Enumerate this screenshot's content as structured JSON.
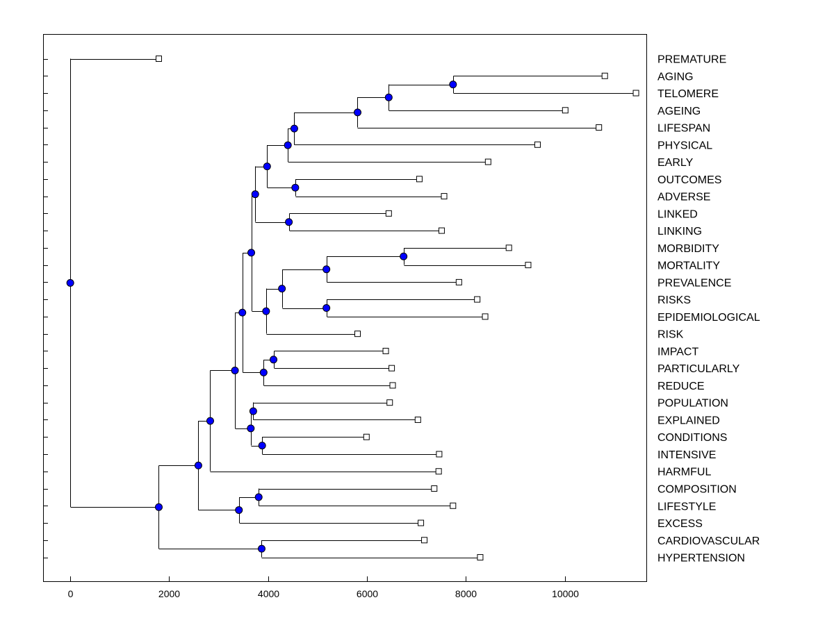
{
  "chart_data": {
    "type": "dendrogram",
    "xlim": [
      -550,
      11650
    ],
    "xticks": [
      0,
      2000,
      4000,
      6000,
      8000,
      10000
    ],
    "xtick_labels": [
      "0",
      "2000",
      "4000",
      "6000",
      "8000",
      "10000"
    ],
    "colors": {
      "node": "#0000ff",
      "leaf": "#ffffff",
      "line": "#000000"
    },
    "leaves": [
      {
        "label": "PREMATURE",
        "x": 1790
      },
      {
        "label": "AGING",
        "x": 10810
      },
      {
        "label": "TELOMERE",
        "x": 11440
      },
      {
        "label": "AGEING",
        "x": 10010
      },
      {
        "label": "LIFESPAN",
        "x": 10690
      },
      {
        "label": "PHYSICAL",
        "x": 9450
      },
      {
        "label": "EARLY",
        "x": 8450
      },
      {
        "label": "OUTCOMES",
        "x": 7060
      },
      {
        "label": "ADVERSE",
        "x": 7560
      },
      {
        "label": "LINKED",
        "x": 6440
      },
      {
        "label": "LINKING",
        "x": 7510
      },
      {
        "label": "MORBIDITY",
        "x": 8870
      },
      {
        "label": "MORTALITY",
        "x": 9260
      },
      {
        "label": "PREVALENCE",
        "x": 7860
      },
      {
        "label": "RISKS",
        "x": 8230
      },
      {
        "label": "EPIDEMIOLOGICAL",
        "x": 8390
      },
      {
        "label": "RISK",
        "x": 5810
      },
      {
        "label": "IMPACT",
        "x": 6380
      },
      {
        "label": "PARTICULARLY",
        "x": 6500
      },
      {
        "label": "REDUCE",
        "x": 6520
      },
      {
        "label": "POPULATION",
        "x": 6460
      },
      {
        "label": "EXPLAINED",
        "x": 7030
      },
      {
        "label": "CONDITIONS",
        "x": 5990
      },
      {
        "label": "INTENSIVE",
        "x": 7460
      },
      {
        "label": "HARMFUL",
        "x": 7450
      },
      {
        "label": "COMPOSITION",
        "x": 7360
      },
      {
        "label": "LIFESTYLE",
        "x": 7740
      },
      {
        "label": "EXCESS",
        "x": 7090
      },
      {
        "label": "CARDIOVASCULAR",
        "x": 7160
      },
      {
        "label": "HYPERTENSION",
        "x": 8290
      }
    ],
    "merges": [
      {
        "id": "n1",
        "x": 7740,
        "children": [
          "L1",
          "L2"
        ]
      },
      {
        "id": "n2",
        "x": 6440,
        "children": [
          "n1",
          "L3"
        ]
      },
      {
        "id": "n3",
        "x": 5810,
        "children": [
          "n2",
          "L4"
        ]
      },
      {
        "id": "n4",
        "x": 4530,
        "children": [
          "n3",
          "L5"
        ]
      },
      {
        "id": "n5",
        "x": 4400,
        "children": [
          "n4",
          "L6"
        ]
      },
      {
        "id": "n6",
        "x": 4550,
        "children": [
          "L7",
          "L8"
        ]
      },
      {
        "id": "n7",
        "x": 3980,
        "children": [
          "n5",
          "n6"
        ]
      },
      {
        "id": "n8",
        "x": 4420,
        "children": [
          "L9",
          "L10"
        ]
      },
      {
        "id": "n9",
        "x": 3740,
        "children": [
          "n7",
          "n8"
        ]
      },
      {
        "id": "n10",
        "x": 6740,
        "children": [
          "L11",
          "L12"
        ]
      },
      {
        "id": "n11",
        "x": 5180,
        "children": [
          "n10",
          "L13"
        ]
      },
      {
        "id": "n12",
        "x": 5180,
        "children": [
          "L14",
          "L15"
        ]
      },
      {
        "id": "n13",
        "x": 4280,
        "children": [
          "n11",
          "n12"
        ]
      },
      {
        "id": "n14",
        "x": 3960,
        "children": [
          "n13",
          "L16"
        ]
      },
      {
        "id": "n15",
        "x": 3660,
        "children": [
          "n9",
          "n14"
        ]
      },
      {
        "id": "n16",
        "x": 4110,
        "children": [
          "L17",
          "L18"
        ]
      },
      {
        "id": "n17",
        "x": 3910,
        "children": [
          "n16",
          "L19"
        ]
      },
      {
        "id": "n18",
        "x": 3480,
        "children": [
          "n15",
          "n17"
        ]
      },
      {
        "id": "n19",
        "x": 3700,
        "children": [
          "L20",
          "L21"
        ]
      },
      {
        "id": "n20",
        "x": 3880,
        "children": [
          "L22",
          "L23"
        ]
      },
      {
        "id": "n21",
        "x": 3650,
        "children": [
          "n19",
          "n20"
        ]
      },
      {
        "id": "n22",
        "x": 3330,
        "children": [
          "n18",
          "n21"
        ]
      },
      {
        "id": "n23",
        "x": 2830,
        "children": [
          "n22",
          "L24"
        ]
      },
      {
        "id": "n24",
        "x": 3810,
        "children": [
          "L25",
          "L26"
        ]
      },
      {
        "id": "n25",
        "x": 3410,
        "children": [
          "n24",
          "L27"
        ]
      },
      {
        "id": "n26",
        "x": 2590,
        "children": [
          "n23",
          "n25"
        ]
      },
      {
        "id": "n27",
        "x": 3870,
        "children": [
          "L28",
          "L29"
        ]
      },
      {
        "id": "n28",
        "x": 1790,
        "children": [
          "n26",
          "n27"
        ]
      },
      {
        "id": "n29",
        "x": 0,
        "children": [
          "L0",
          "n28"
        ]
      }
    ]
  }
}
